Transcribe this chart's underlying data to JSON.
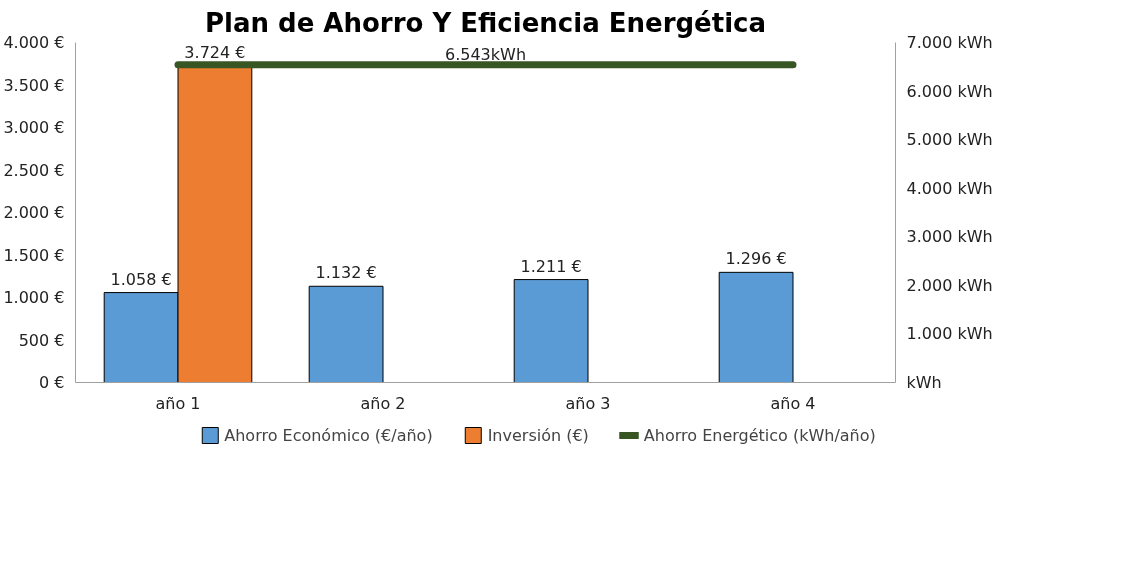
{
  "chart_data": {
    "type": "bar",
    "title": "Plan de Ahorro Y Eficiencia Energética",
    "categories": [
      "año 1",
      "año 2",
      "año 3",
      "año 4"
    ],
    "series": [
      {
        "name": "Ahorro Económico (€/año)",
        "color": "#5b9bd5",
        "values": [
          1058,
          1132,
          1211,
          1296
        ],
        "value_labels": [
          "1.058 €",
          "1.132 €",
          "1.211 €",
          "1.296 €"
        ]
      },
      {
        "name": "Inversión (€)",
        "color": "#ed7d31",
        "values": [
          3724,
          null,
          null,
          null
        ],
        "value_labels": [
          "3.724 €",
          null,
          null,
          null
        ]
      },
      {
        "name": "Ahorro Energético (kWh/año)",
        "type": "line",
        "axis": "y2",
        "color": "#375623",
        "values": [
          6543,
          6543,
          6543,
          6543
        ]
      }
    ],
    "ylim": [
      0,
      4000
    ],
    "yticks": [
      {
        "value": 0,
        "label": "0 €"
      },
      {
        "value": 500,
        "label": "500 €"
      },
      {
        "value": 1000,
        "label": "1.000 €"
      },
      {
        "value": 1500,
        "label": "1.500 €"
      },
      {
        "value": 2000,
        "label": "2.000 €"
      },
      {
        "value": 2500,
        "label": "2.500 €"
      },
      {
        "value": 3000,
        "label": "3.000 €"
      },
      {
        "value": 3500,
        "label": "3.500 €"
      },
      {
        "value": 4000,
        "label": "4.000 €"
      }
    ],
    "y2lim": [
      0,
      7000
    ],
    "y2ticks": [
      {
        "value": 0,
        "label": "kWh"
      },
      {
        "value": 1000,
        "label": "1.000 kWh"
      },
      {
        "value": 2000,
        "label": "2.000 kWh"
      },
      {
        "value": 3000,
        "label": "3.000 kWh"
      },
      {
        "value": 4000,
        "label": "4.000 kWh"
      },
      {
        "value": 5000,
        "label": "5.000 kWh"
      },
      {
        "value": 6000,
        "label": "6.000 kWh"
      },
      {
        "value": 7000,
        "label": "7.000 kWh"
      }
    ],
    "annotations": [
      "6.543kWh"
    ],
    "grid": false,
    "legend": "bottom"
  }
}
